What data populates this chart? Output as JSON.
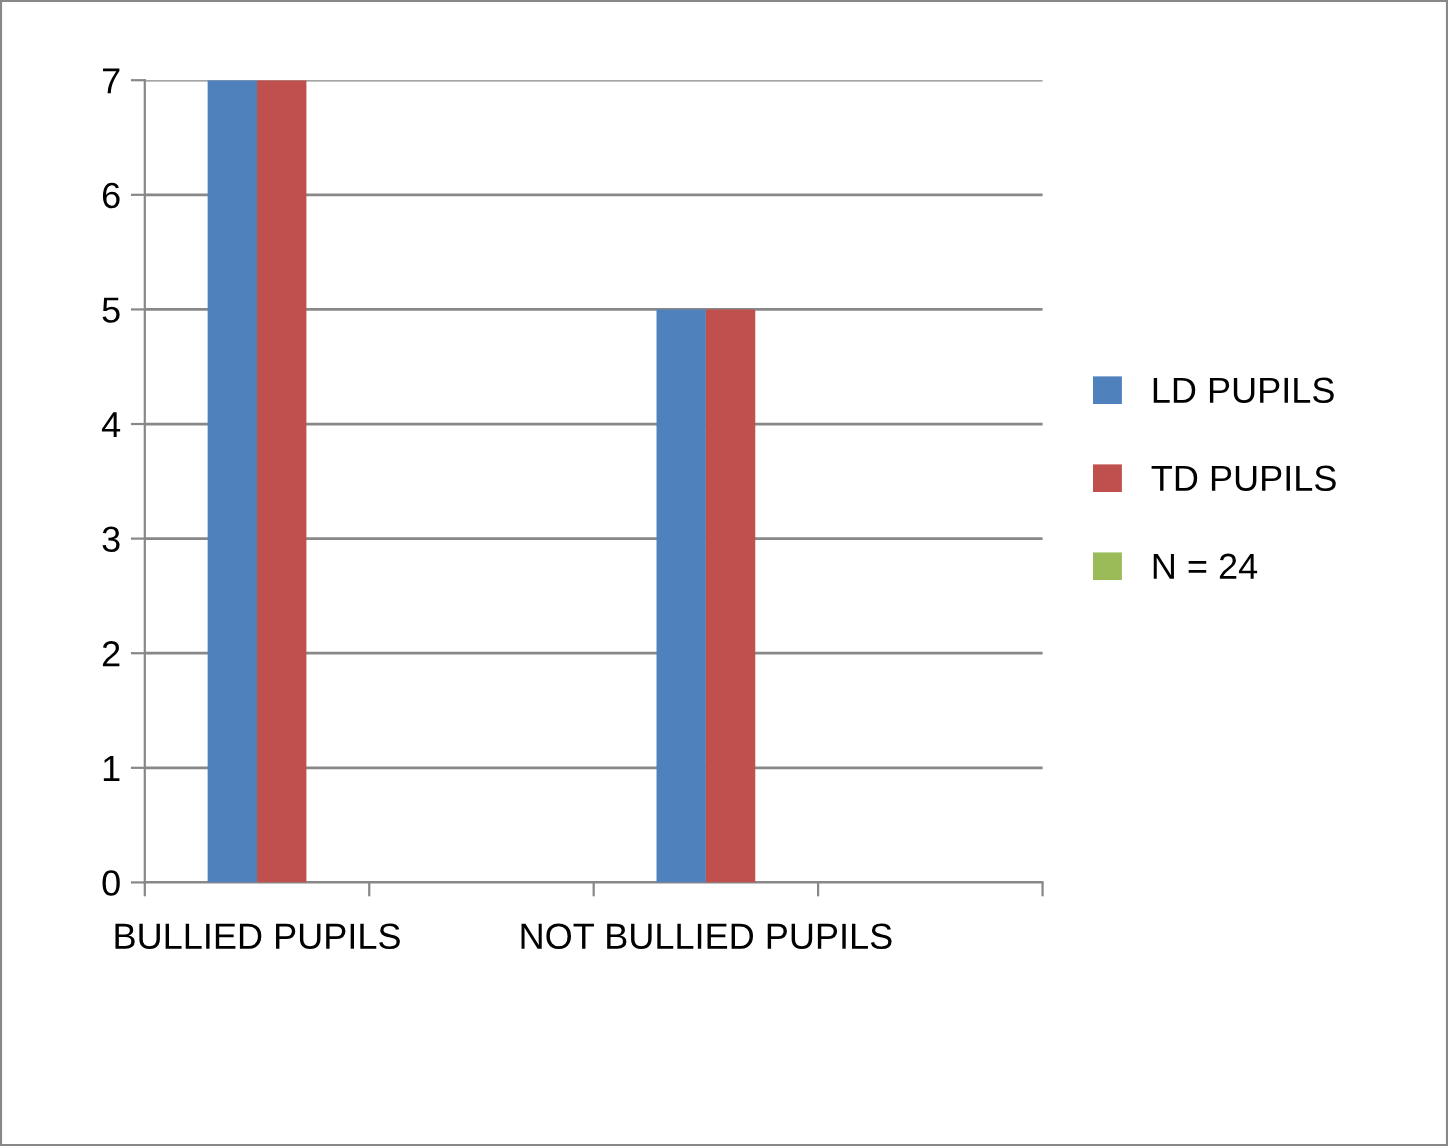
{
  "chart_data": {
    "type": "bar",
    "categories": [
      "BULLIED PUPILS",
      null,
      "NOT BULLIED PUPILS",
      null
    ],
    "series": [
      {
        "name": "LD PUPILS",
        "color": "#4f81bd",
        "values": [
          7,
          null,
          5,
          null
        ]
      },
      {
        "name": "TD PUPILS",
        "color": "#c0504d",
        "values": [
          7,
          null,
          5,
          null
        ]
      },
      {
        "name": "N = 24",
        "color": "#9bbb59",
        "values": [
          null,
          null,
          null,
          null
        ]
      }
    ],
    "ylim": [
      0,
      7
    ],
    "yticks": [
      0,
      1,
      2,
      3,
      4,
      5,
      6,
      7
    ],
    "grid": "y",
    "legend": "right"
  }
}
